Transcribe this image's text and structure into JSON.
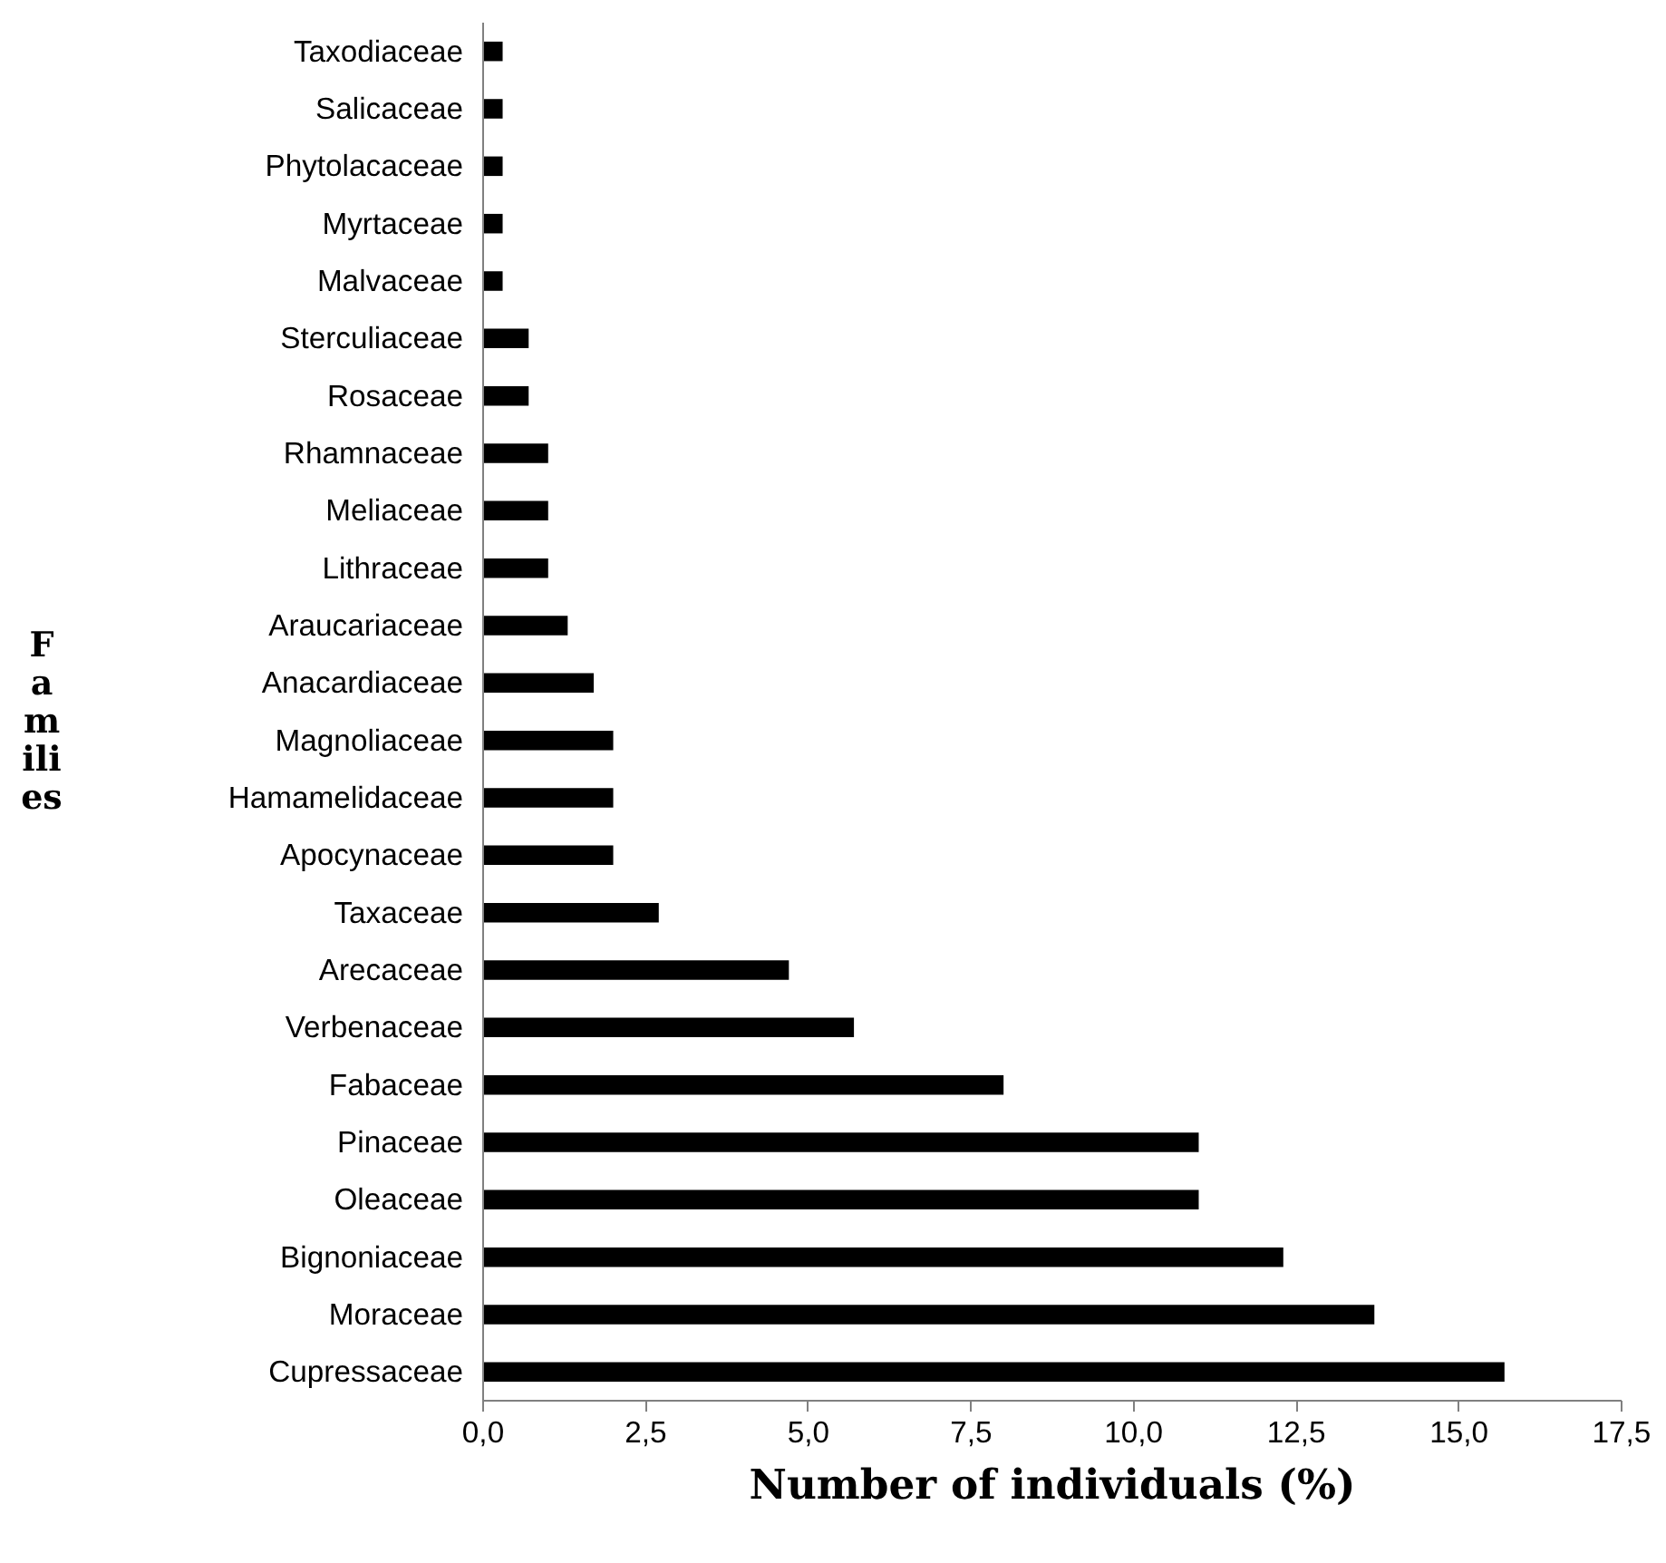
{
  "chart_data": {
    "type": "bar",
    "orientation": "horizontal",
    "xlabel": "Number of individuals (%)",
    "ylabel": "Families",
    "categories": [
      "Taxodiaceae",
      "Salicaceae",
      "Phytolacaceae",
      "Myrtaceae",
      "Malvaceae",
      "Sterculiaceae",
      "Rosaceae",
      "Rhamnaceae",
      "Meliaceae",
      "Lithraceae",
      "Araucariaceae",
      "Anacardiaceae",
      "Magnoliaceae",
      "Hamamelidaceae",
      "Apocynaceae",
      "Taxaceae",
      "Arecaceae",
      "Verbenaceae",
      "Fabaceae",
      "Pinaceae",
      "Oleaceae",
      "Bignoniaceae",
      "Moraceae",
      "Cupressaceae"
    ],
    "values": [
      0.3,
      0.3,
      0.3,
      0.3,
      0.3,
      0.7,
      0.7,
      1.0,
      1.0,
      1.0,
      1.3,
      1.7,
      2.0,
      2.0,
      2.0,
      2.7,
      4.7,
      5.7,
      8.0,
      11.0,
      11.0,
      12.3,
      13.7,
      15.7
    ],
    "color": "#000000",
    "xlim": [
      0,
      17.5
    ],
    "xticks": [
      {
        "value": 0,
        "label": "0,0"
      },
      {
        "value": 2.5,
        "label": "2,5"
      },
      {
        "value": 5,
        "label": "5,0"
      },
      {
        "value": 7.5,
        "label": "7,5"
      },
      {
        "value": 10,
        "label": "10,0"
      },
      {
        "value": 12.5,
        "label": "12,5"
      },
      {
        "value": 15,
        "label": "15,0"
      },
      {
        "value": 17.5,
        "label": "17,5"
      }
    ],
    "grid": false
  }
}
